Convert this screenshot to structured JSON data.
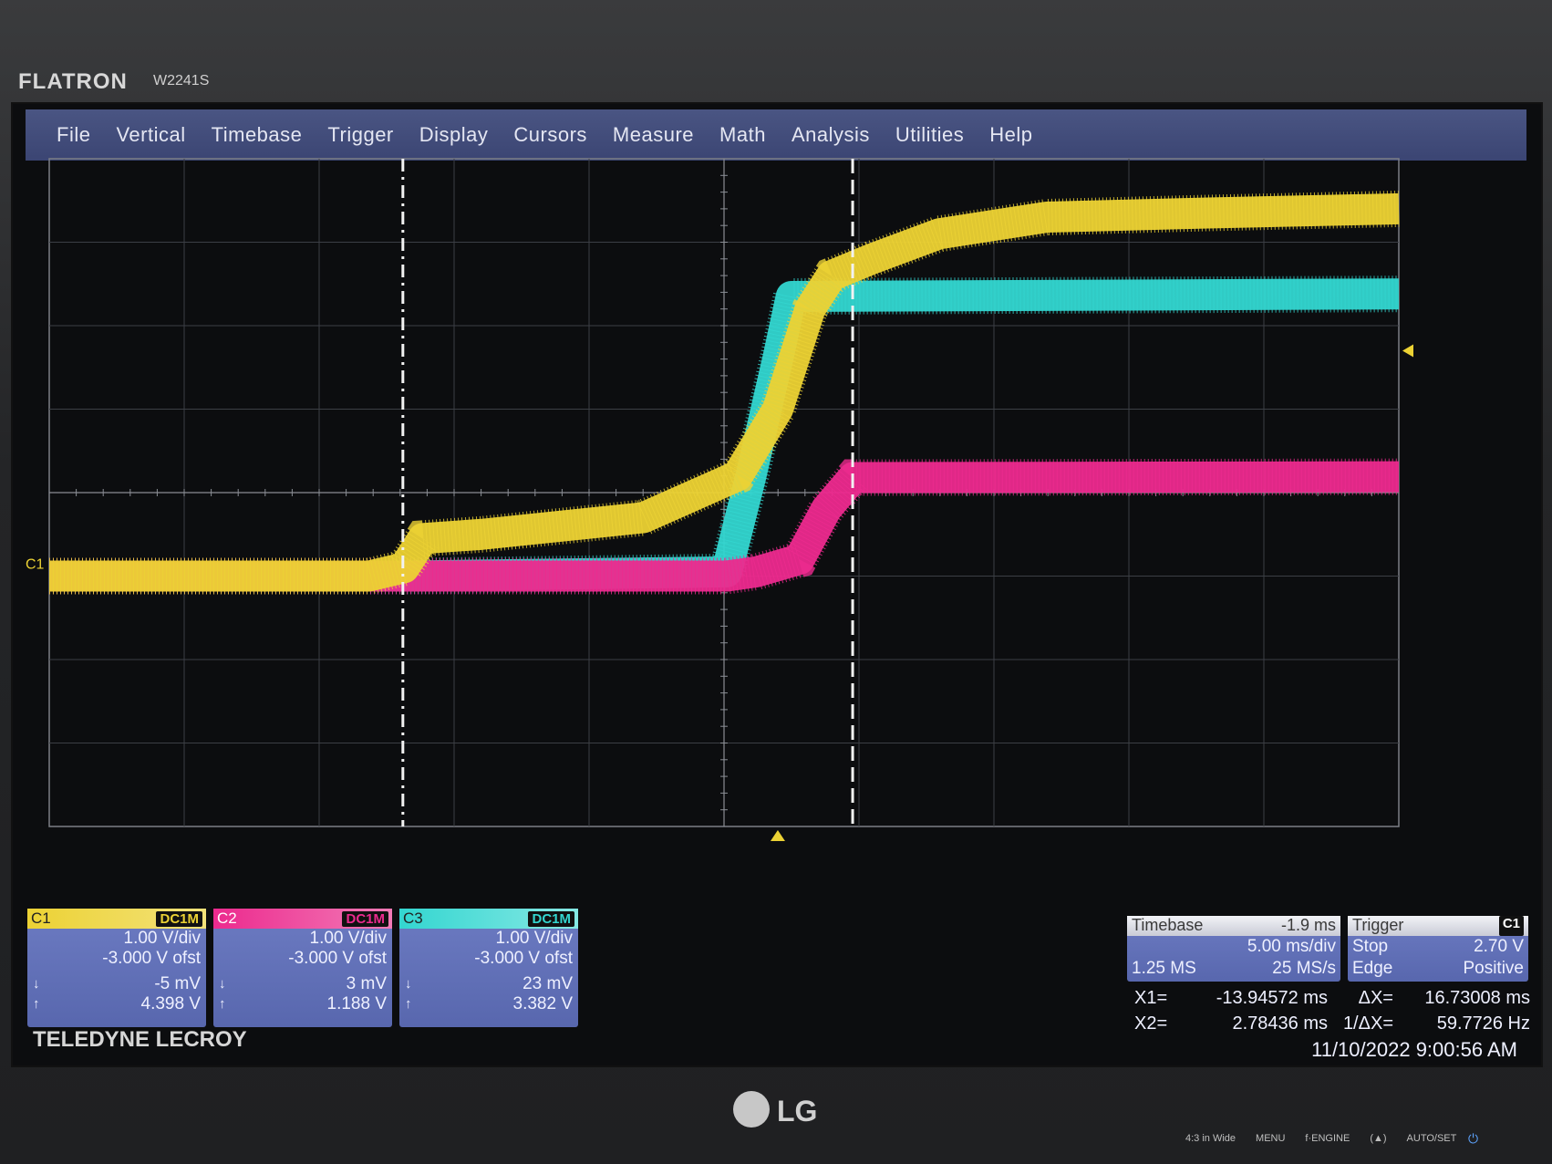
{
  "monitor": {
    "brand": "FLATRON",
    "model": "W2241S",
    "maker": "LG",
    "buttons": [
      "4:3 in Wide",
      "MENU",
      "f·ENGINE",
      "(▲)",
      "AUTO/SET"
    ]
  },
  "menu": [
    "File",
    "Vertical",
    "Timebase",
    "Trigger",
    "Display",
    "Cursors",
    "Measure",
    "Math",
    "Analysis",
    "Utilities",
    "Help"
  ],
  "channels": [
    {
      "id": "C1",
      "coupling": "DC1M",
      "vdiv": "1.00 V/div",
      "offset": "-3.000 V ofst",
      "low": "-5 mV",
      "high": "4.398 V",
      "color": "#ecd234"
    },
    {
      "id": "C2",
      "coupling": "DC1M",
      "vdiv": "1.00 V/div",
      "offset": "-3.000 V ofst",
      "low": "3 mV",
      "high": "1.188 V",
      "color": "#ec2a8e"
    },
    {
      "id": "C3",
      "coupling": "DC1M",
      "vdiv": "1.00 V/div",
      "offset": "-3.000 V ofst",
      "low": "23 mV",
      "high": "3.382 V",
      "color": "#33d6d0"
    }
  ],
  "timebase": {
    "title": "Timebase",
    "delay": "-1.9 ms",
    "scale": "5.00 ms/div",
    "samples": "1.25 MS",
    "rate": "25 MS/s"
  },
  "trigger": {
    "title": "Trigger",
    "source": "C1",
    "mode": "Stop",
    "level": "2.70 V",
    "type": "Edge",
    "slope": "Positive"
  },
  "cursors": {
    "x1_label": "X1=",
    "x1": "-13.94572 ms",
    "x2_label": "X2=",
    "x2": "2.78436 ms",
    "dx_label": "ΔX=",
    "dx": "16.73008 ms",
    "inv_dx_label": "1/ΔX=",
    "inv_dx": "59.7726 Hz"
  },
  "datetime": "11/10/2022 9:00:56 AM",
  "vendor": "TELEDYNE LECROY",
  "ch_marker": "C1",
  "chart_data": {
    "type": "line",
    "xlabel": "",
    "ylabel": "",
    "x_unit": "ms",
    "y_unit": "V",
    "xlim": [
      -27.1,
      23.1
    ],
    "ylim": [
      -3.0,
      5.0
    ],
    "grid": true,
    "series": [
      {
        "name": "C1",
        "color": "#ecd234",
        "x": [
          -27.1,
          -15.2,
          -13.9,
          -13.2,
          -11.0,
          -5.0,
          -1.5,
          0.0,
          1.2,
          2.0,
          3.5,
          6.0,
          10.0,
          16.0,
          23.1
        ],
        "y": [
          0.0,
          0.0,
          0.1,
          0.45,
          0.5,
          0.7,
          1.2,
          2.0,
          3.2,
          3.6,
          3.8,
          4.1,
          4.3,
          4.35,
          4.4
        ]
      },
      {
        "name": "C3",
        "color": "#33d6d0",
        "x": [
          -27.1,
          -13.9,
          -1.9,
          -1.0,
          0.0,
          0.5,
          23.1
        ],
        "y": [
          0.0,
          0.0,
          0.05,
          1.2,
          2.6,
          3.35,
          3.38
        ]
      },
      {
        "name": "C2",
        "color": "#ec2a8e",
        "x": [
          -27.1,
          -1.9,
          -0.8,
          0.8,
          1.8,
          2.8,
          23.1
        ],
        "y": [
          0.0,
          0.0,
          0.05,
          0.2,
          0.8,
          1.18,
          1.19
        ]
      }
    ],
    "cursors_x": [
      -13.94572,
      2.78436
    ]
  }
}
